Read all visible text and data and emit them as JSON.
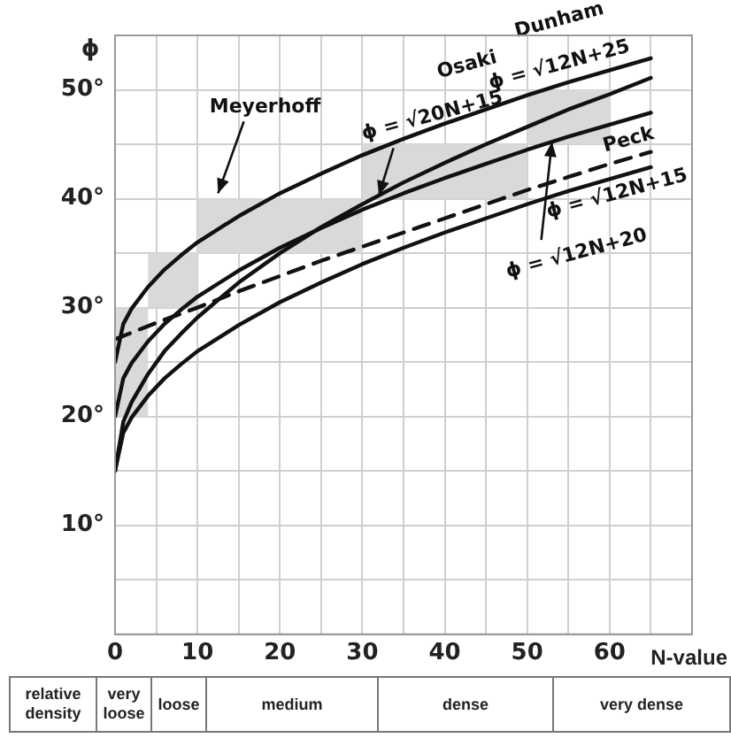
{
  "chart_data": {
    "type": "line",
    "ylabel": "ϕ",
    "xlabel": "N-value",
    "xlim": [
      0,
      70
    ],
    "ylim": [
      0,
      55
    ],
    "xticks": [
      0,
      {
        "value": 5,
        "label": null
      },
      10,
      {
        "value": 15,
        "label": null
      },
      20,
      {
        "value": 25,
        "label": null
      },
      30,
      {
        "value": 35,
        "label": null
      },
      40,
      {
        "value": 45,
        "label": null
      },
      50,
      {
        "value": 55,
        "label": null
      },
      60,
      {
        "value": 65,
        "label": null
      },
      {
        "value": 70,
        "label": null
      }
    ],
    "yticks": [
      {
        "value": 0,
        "label": null
      },
      {
        "value": 5,
        "label": null
      },
      {
        "value": 10,
        "label": "10°"
      },
      {
        "value": 15,
        "label": null
      },
      {
        "value": 20,
        "label": "20°"
      },
      {
        "value": 25,
        "label": null
      },
      {
        "value": 30,
        "label": "30°"
      },
      {
        "value": 35,
        "label": null
      },
      {
        "value": 40,
        "label": "40°"
      },
      {
        "value": 45,
        "label": null
      },
      {
        "value": 50,
        "label": "50°"
      },
      {
        "value": 55,
        "label": null
      }
    ],
    "grid": true,
    "legend": false,
    "marker": "none",
    "x": [
      0,
      1,
      2,
      4,
      6,
      8,
      10,
      15,
      20,
      25,
      30,
      35,
      40,
      45,
      50,
      55,
      60,
      65
    ],
    "series": [
      {
        "type": "bar",
        "color": "#d9d9d9",
        "x": [
          2,
          7,
          20,
          40,
          55
        ],
        "base": [
          20,
          30,
          35,
          40,
          45
        ],
        "values": [
          10,
          5,
          5,
          5,
          5
        ]
      },
      {
        "color": "#111111",
        "line_style": "solid",
        "values": [
          25,
          28.5,
          29.9,
          31.9,
          33.5,
          34.8,
          36.0,
          38.4,
          40.5,
          42.3,
          44.0,
          45.5,
          46.9,
          48.2,
          49.5,
          50.7,
          51.8,
          52.9
        ]
      },
      {
        "color": "#111111",
        "line_style": "solid",
        "values": [
          15,
          19.5,
          21.3,
          23.9,
          26.0,
          27.6,
          29.1,
          32.3,
          35.0,
          37.4,
          39.5,
          41.5,
          43.3,
          45.0,
          46.6,
          48.2,
          49.6,
          51.1
        ]
      },
      {
        "color": "#111111",
        "line_style": "solid",
        "values": [
          20,
          23.5,
          24.9,
          26.9,
          28.5,
          29.8,
          31.0,
          33.4,
          35.5,
          37.3,
          39.0,
          40.5,
          41.9,
          43.2,
          44.5,
          45.7,
          46.8,
          47.9
        ]
      },
      {
        "color": "#111111",
        "line_style": "solid",
        "values": [
          15,
          18.5,
          19.9,
          21.9,
          23.5,
          24.8,
          26.0,
          28.4,
          30.5,
          32.3,
          34.0,
          35.5,
          36.9,
          38.2,
          39.5,
          40.7,
          41.8,
          42.9
        ]
      },
      {
        "color": "#111111",
        "line_style": "dashed",
        "x": [
          0,
          5,
          10,
          15,
          20,
          25,
          30,
          35,
          40,
          45,
          50,
          55,
          60,
          65
        ],
        "values": [
          27.1,
          28.6,
          30.0,
          31.5,
          32.9,
          34.3,
          35.6,
          36.9,
          38.2,
          39.5,
          40.8,
          42.0,
          43.2,
          44.3
        ]
      }
    ],
    "annotations": [
      {
        "text": "Meyerhoff",
        "x": 12.5,
        "y": 40.5
      },
      "Osaki",
      {
        "text": "ϕ = √20N+15",
        "x": 32,
        "y": 40.3
      },
      "Dunham",
      "ϕ = √12N+25",
      "Peck",
      "ϕ = √12N+15",
      {
        "text": "ϕ = √12N+20",
        "x": 53,
        "y": 45.2
      },
      "relative density",
      "very loose",
      "loose",
      "medium",
      "dense",
      "very dense"
    ]
  }
}
